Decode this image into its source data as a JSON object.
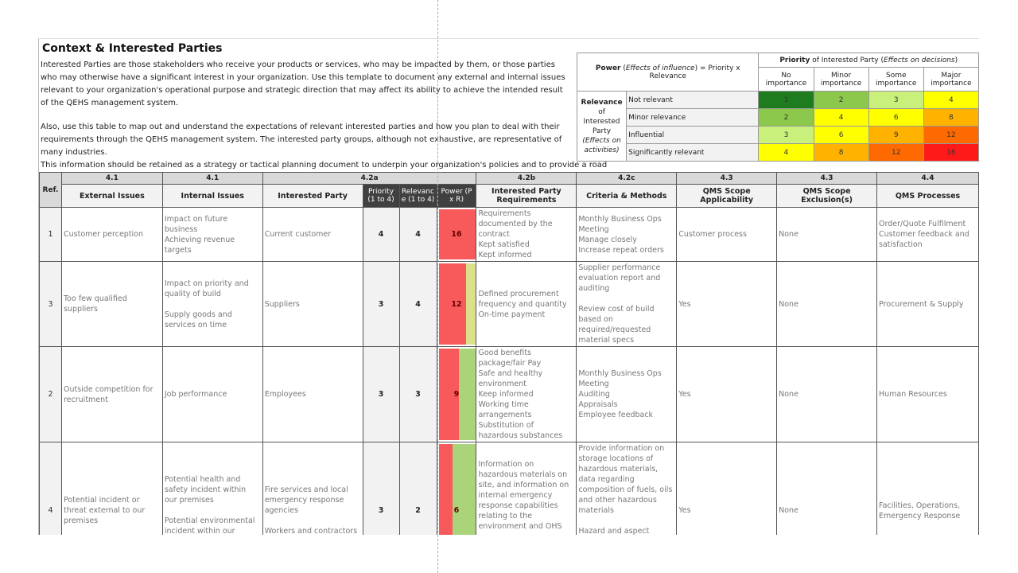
{
  "title": "Context & Interested Parties",
  "intro": [
    "Interested Parties are those stakeholders who receive your products or services, who may be impacted by them, or those parties who may otherwise have a significant interest in your organization. Use this template to document any external and internal issues relevant to your organization's operational purpose and strategic direction that may affect its ability to achieve the intended result of the QEHS management system.",
    "Also, use this table to map out and understand the expectations of relevant interested parties and how you plan to deal with their requirements through the QEHS management system. The interested party groups, although not exhaustive, are representative of many industries.",
    "This information should be retained as a strategy or tactical planning document to underpin your organization's policies and to provide a road"
  ],
  "matrix": {
    "power_label": "Power",
    "power_italic": "Effects of influence",
    "power_formula": " = Priority x Relevance",
    "priority_label": "Priority",
    "priority_rest": " of Interested Party (",
    "priority_italic": "Effects on decisions",
    "cols": [
      "No importance",
      "Minor importance",
      "Some importance",
      "Major importance"
    ],
    "relevance_label": "Relevance",
    "relevance_rest": "of Interested Party",
    "relevance_italic": "(Effects on activities)",
    "rows": [
      {
        "label": "Not relevant",
        "values": [
          "1",
          "2",
          "3",
          "4"
        ]
      },
      {
        "label": "Minor relevance",
        "values": [
          "2",
          "4",
          "6",
          "8"
        ]
      },
      {
        "label": "Influential",
        "values": [
          "3",
          "6",
          "9",
          "12"
        ]
      },
      {
        "label": "Significantly relevant",
        "values": [
          "4",
          "8",
          "12",
          "16"
        ]
      }
    ],
    "colors": {
      "1": "#1e7b1e",
      "2": "#8cc84b",
      "3": "#c9f07a",
      "4": "#ffff00",
      "6": "#ffff00",
      "8": "#ffb300",
      "9": "#ffb300",
      "12": "#ff6a00",
      "16": "#ff1a1a"
    }
  },
  "table": {
    "groups": [
      "4.1",
      "4.1",
      "4.2a",
      "4.2b",
      "4.2c",
      "4.3",
      "4.3",
      "4.4"
    ],
    "headers": [
      "Ref.",
      "External Issues",
      "Internal Issues",
      "Interested Party",
      "Priority (1 to 4)",
      "Relevanc e (1 to 4)",
      "Power (P x R)",
      "Interested Party Requirements",
      "Criteria & Methods",
      "QMS Scope Applicability",
      "QMS Scope Exclusion(s)",
      "QMS Processes"
    ],
    "rows": [
      {
        "ref": "1",
        "external": "Customer perception",
        "internal": "Impact on future business\nAchieving revenue targets",
        "party": "Current customer",
        "priority": "4",
        "relevance": "4",
        "power": "16",
        "requirements": "Requirements documented by the contract\nKept satisfied\nKept informed",
        "criteria": "Monthly Business Ops Meeting\nManage closely\nIncrease repeat orders",
        "applicability": "Customer process",
        "exclusion": "None",
        "processes": "Order/Quote Fulfilment\nCustomer feedback and satisfaction"
      },
      {
        "ref": "3",
        "external": "Too few qualified suppliers",
        "internal": "Impact on priority and quality of build\n\nSupply goods and services on time",
        "party": "Suppliers",
        "priority": "3",
        "relevance": "4",
        "power": "12",
        "requirements": "Defined procurement frequency and quantity\nOn-time payment",
        "criteria": "Supplier performance evaluation report and auditing\n\nReview cost of build based on required/requested material specs",
        "applicability": "Yes",
        "exclusion": "None",
        "processes": "Procurement & Supply"
      },
      {
        "ref": "2",
        "external": "Outside competition for recruitment",
        "internal": "Job performance",
        "party": "Employees",
        "priority": "3",
        "relevance": "3",
        "power": "9",
        "requirements": "Good benefits package/fair Pay\nSafe and healthy environment\nKeep informed\nWorking time arrangements\nSubstitution of hazardous substances",
        "criteria": "Monthly Business Ops Meeting\nAuditing\nAppraisals\nEmployee feedback",
        "applicability": "Yes",
        "exclusion": "None",
        "processes": "Human Resources"
      },
      {
        "ref": "4",
        "external": "Potential incident or threat external to our premises",
        "internal": "Potential health and safety incident within our premises\n\nPotential environmental incident within our premises",
        "party": "Fire services and local emergency response agencies\n\nWorkers and contractors",
        "priority": "3",
        "relevance": "2",
        "power": "6",
        "requirements": "Information on hazardous materials on site, and information on internal emergency response capabilities relating to the environment and OHS\n\nAccess requirements and emergency procedures",
        "criteria": "Provide information on storage locations of hazardous materials, data regarding composition of fuels, oils and other hazardous materials\n\nHazard and aspect assessment\n\nWorker and contractor training and competence",
        "applicability": "Yes",
        "exclusion": "None",
        "processes": "Facilities, Operations, Emergency Response"
      }
    ],
    "power_max": 16,
    "power_bar_color": "#f8595a",
    "power_rest_colors": [
      "#f8595a",
      "#dbe08a",
      "#a9d47a",
      "#a9d47a"
    ]
  }
}
